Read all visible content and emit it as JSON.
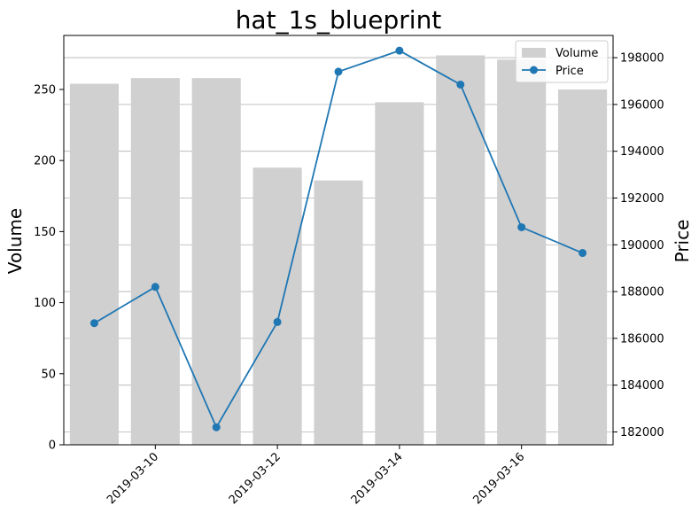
{
  "chart_data": {
    "type": "bar+line",
    "title": "hat_1s_blueprint",
    "ylabel_left": "Volume",
    "ylabel_right": "Price",
    "xlabel": "",
    "dates": [
      "2019-03-09",
      "2019-03-10",
      "2019-03-11",
      "2019-03-12",
      "2019-03-13",
      "2019-03-14",
      "2019-03-15",
      "2019-03-16",
      "2019-03-17"
    ],
    "x_tick_labels": [
      "2019-03-10",
      "2019-03-12",
      "2019-03-14",
      "2019-03-16"
    ],
    "series": [
      {
        "name": "Volume",
        "kind": "bar",
        "axis": "left",
        "color": "#d0d0d0",
        "values": [
          254,
          258,
          258,
          195,
          186,
          241,
          274,
          271,
          250
        ]
      },
      {
        "name": "Price",
        "kind": "line",
        "axis": "right",
        "color": "#1f77b4",
        "values": [
          186650,
          188200,
          182200,
          186700,
          197400,
          198300,
          196850,
          190750,
          189650
        ]
      }
    ],
    "ylim_left": [
      0,
      288
    ],
    "yticks_left": [
      0,
      50,
      100,
      150,
      200,
      250
    ],
    "ylim_right": [
      181450,
      198950
    ],
    "yticks_right": [
      182000,
      184000,
      186000,
      188000,
      190000,
      192000,
      194000,
      196000,
      198000
    ],
    "grid": "horizontal, right axis",
    "legend": "top-right"
  }
}
